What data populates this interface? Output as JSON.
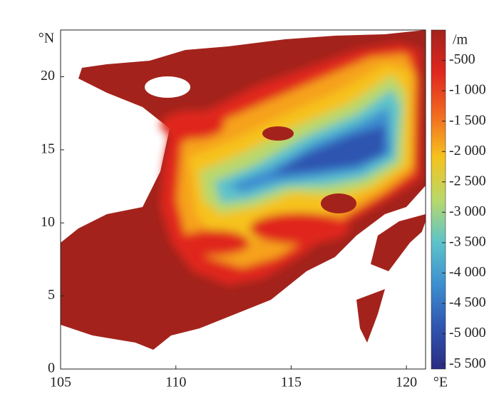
{
  "map": {
    "x_axis": {
      "lim": [
        105,
        120.83
      ],
      "ticks": [
        105,
        110,
        115,
        120
      ],
      "unit": "°E"
    },
    "y_axis": {
      "lim": [
        0,
        23.2
      ],
      "ticks": [
        0,
        5,
        10,
        15,
        20
      ],
      "unit": "°N"
    },
    "colorbar": {
      "unit": "/m",
      "lim": [
        -5580,
        0
      ],
      "ticks": [
        -500,
        {
          "value": -1000,
          "label": "-1 000"
        },
        {
          "value": -1500,
          "label": "-1 500"
        },
        {
          "value": -2000,
          "label": "-2 000"
        },
        {
          "value": -2500,
          "label": "-2 500"
        },
        {
          "value": -3000,
          "label": "-3 000"
        },
        {
          "value": -3500,
          "label": "-3 500"
        },
        {
          "value": -4000,
          "label": "-4 000"
        },
        {
          "value": -4500,
          "label": "-4 500"
        },
        {
          "value": -5000,
          "label": "-5 000"
        },
        {
          "value": -5500,
          "label": "-5 500"
        }
      ],
      "colors": [
        "#a3231c",
        "#e0261f",
        "#f26a21",
        "#f6c21c",
        "#b9d86a",
        "#5fc3c9",
        "#3d8fd0",
        "#2f55b0",
        "#2b2c82"
      ]
    }
  }
}
